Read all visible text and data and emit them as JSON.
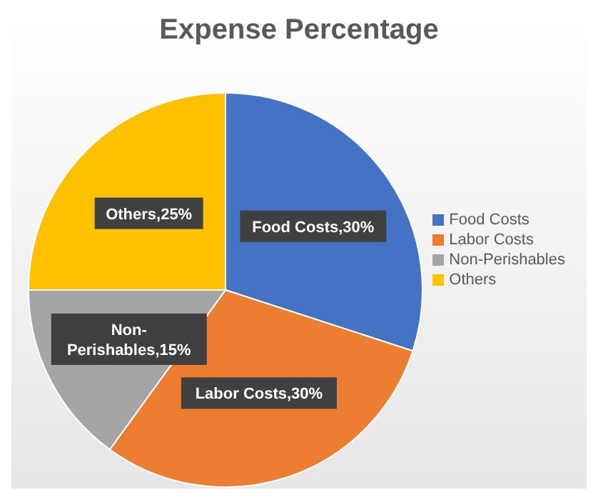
{
  "chart_data": {
    "type": "pie",
    "title": "Expense Percentage",
    "categories": [
      "Food Costs",
      "Labor Costs",
      "Non-Perishables",
      "Others"
    ],
    "values": [
      30,
      30,
      15,
      25
    ],
    "colors": [
      "#4472c4",
      "#ed7d31",
      "#a5a5a5",
      "#ffc000"
    ],
    "value_labels": [
      "Food Costs,30%",
      "Labor Costs,30%",
      "Non-Perishables,15%",
      "Others,25%"
    ],
    "legend": "right"
  }
}
